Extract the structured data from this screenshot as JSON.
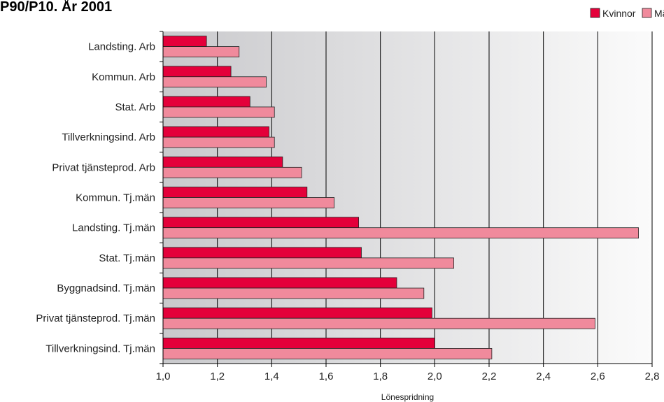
{
  "chart_data": {
    "type": "bar",
    "orientation": "horizontal",
    "title": "P90/P10. År 2001",
    "xlabel": "Lönespridning",
    "ylabel": "",
    "xlim": [
      1.0,
      2.8
    ],
    "x_ticks": [
      "1,0",
      "1,2",
      "1,4",
      "1,6",
      "1,8",
      "2,0",
      "2,2",
      "2,4",
      "2,6",
      "2,8"
    ],
    "grid": "vertical",
    "legend_position": "top-right",
    "categories": [
      "Landsting. Arb",
      "Kommun. Arb",
      "Stat. Arb",
      "Tillverkningsind. Arb",
      "Privat tjänsteprod. Arb",
      "Kommun. Tj.män",
      "Landsting. Tj.män",
      "Stat. Tj.män",
      "Byggnadsind. Tj.män",
      "Privat tjänsteprod. Tj.män",
      "Tillverkningsind. Tj.män"
    ],
    "series": [
      {
        "name": "Kvinnor",
        "color": "#e4003a",
        "values": [
          1.16,
          1.25,
          1.32,
          1.39,
          1.44,
          1.53,
          1.72,
          1.73,
          1.86,
          1.99,
          2.0
        ]
      },
      {
        "name": "Män",
        "color": "#f08a9c",
        "values": [
          1.28,
          1.38,
          1.41,
          1.41,
          1.51,
          1.63,
          2.75,
          2.07,
          1.96,
          2.59,
          2.21
        ]
      }
    ]
  }
}
